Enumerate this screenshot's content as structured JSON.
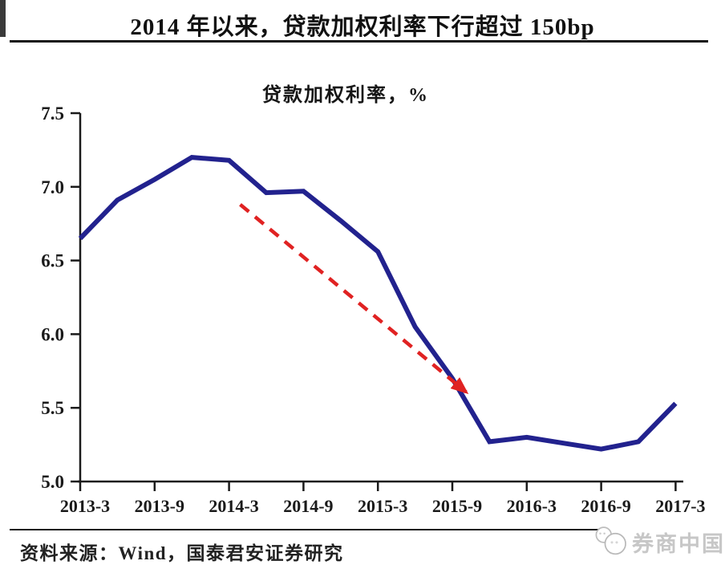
{
  "header": {
    "title": "2014 年以来，贷款加权利率下行超过 150bp"
  },
  "chart_data": {
    "type": "line",
    "title": "2014 年以来，贷款加权利率下行超过 150bp",
    "subtitle": "贷款加权利率，%",
    "x": [
      "2013-3",
      "2013-6",
      "2013-9",
      "2013-12",
      "2014-3",
      "2014-6",
      "2014-9",
      "2014-12",
      "2015-3",
      "2015-6",
      "2015-9",
      "2015-12",
      "2016-3",
      "2016-6",
      "2016-9",
      "2016-12",
      "2017-3"
    ],
    "values": [
      6.65,
      6.91,
      7.05,
      7.2,
      7.18,
      6.96,
      6.97,
      6.77,
      6.56,
      6.05,
      5.7,
      5.27,
      5.3,
      5.26,
      5.22,
      5.27,
      5.53
    ],
    "x_tick_labels": [
      "2013-3",
      "2013-9",
      "2014-3",
      "2014-9",
      "2015-3",
      "2015-9",
      "2016-3",
      "2016-9",
      "2017-3"
    ],
    "y_ticks": [
      5.0,
      5.5,
      6.0,
      6.5,
      7.0,
      7.5
    ],
    "ylim": [
      5.0,
      7.5
    ],
    "grid": false,
    "legend": "none",
    "line_color": "#22228e",
    "axis_color": "#1a1a1a",
    "annotation_arrow": {
      "style": "dashed",
      "color": "#e02222",
      "from": {
        "x_index": 4.3,
        "value": 6.88
      },
      "to": {
        "x_index": 10.5,
        "value": 5.58
      }
    }
  },
  "footer": {
    "source": "资料来源：Wind，国泰君安证券研究",
    "watermark": "券商中国"
  }
}
